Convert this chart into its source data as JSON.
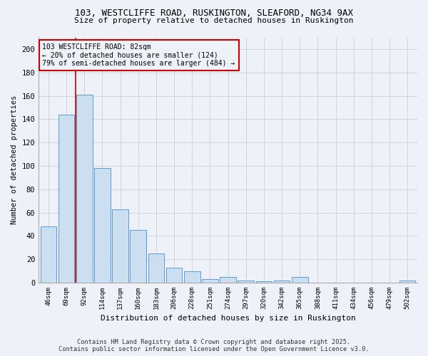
{
  "title1": "103, WESTCLIFFE ROAD, RUSKINGTON, SLEAFORD, NG34 9AX",
  "title2": "Size of property relative to detached houses in Ruskington",
  "xlabel": "Distribution of detached houses by size in Ruskington",
  "ylabel": "Number of detached properties",
  "bar_categories": [
    "46sqm",
    "69sqm",
    "92sqm",
    "114sqm",
    "137sqm",
    "160sqm",
    "183sqm",
    "206sqm",
    "228sqm",
    "251sqm",
    "274sqm",
    "297sqm",
    "320sqm",
    "342sqm",
    "365sqm",
    "388sqm",
    "411sqm",
    "434sqm",
    "456sqm",
    "479sqm",
    "502sqm"
  ],
  "bar_values": [
    48,
    144,
    161,
    98,
    63,
    45,
    25,
    13,
    10,
    3,
    5,
    2,
    1,
    2,
    5,
    0,
    0,
    0,
    0,
    0,
    2
  ],
  "bar_color": "#ccdff0",
  "bar_edge_color": "#5b9bd5",
  "annotation_line1": "103 WESTCLIFFE ROAD: 82sqm",
  "annotation_line2": "← 20% of detached houses are smaller (124)",
  "annotation_line3": "79% of semi-detached houses are larger (484) →",
  "vline_x": 1.5,
  "vline_color": "#cc0000",
  "box_edge_color": "#cc0000",
  "footer_text": "Contains HM Land Registry data © Crown copyright and database right 2025.\nContains public sector information licensed under the Open Government Licence v3.0.",
  "bg_color": "#eef2f8",
  "ylim_max": 210,
  "yticks": [
    0,
    20,
    40,
    60,
    80,
    100,
    120,
    140,
    160,
    180,
    200
  ]
}
